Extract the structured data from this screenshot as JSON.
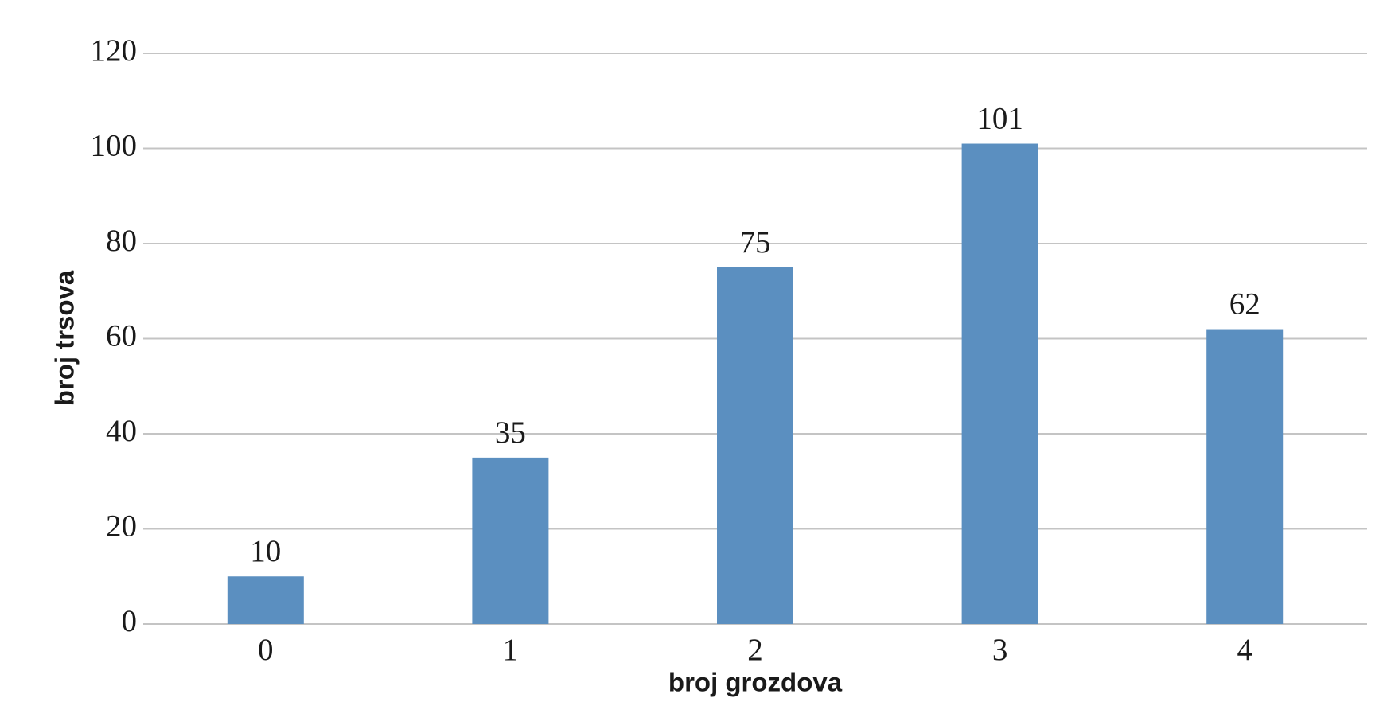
{
  "chart_data": {
    "type": "bar",
    "x_label": "broj grozdova",
    "y_label": "broj trsova",
    "categories": [
      "0",
      "1",
      "2",
      "3",
      "4"
    ],
    "values": [
      10,
      35,
      75,
      101,
      62
    ],
    "color": "#5b8fc0",
    "ylim": [
      0,
      120
    ],
    "yticks": [
      0,
      20,
      40,
      60,
      80,
      100,
      120
    ],
    "grid": true,
    "data_labels": true
  }
}
